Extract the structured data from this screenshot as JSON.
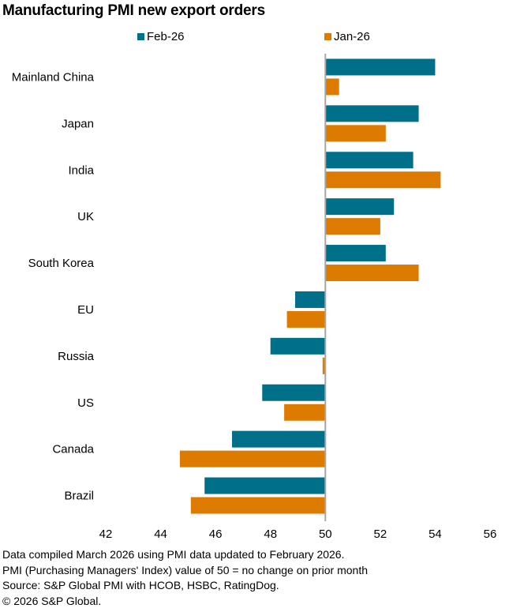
{
  "chart_data": {
    "type": "bar",
    "orientation": "horizontal",
    "title": "Manufacturing PMI new export orders",
    "xlabel": "",
    "ylabel": "",
    "xlim": [
      42,
      56
    ],
    "xticks": [
      42,
      44,
      46,
      48,
      50,
      52,
      54,
      56
    ],
    "baseline": 50,
    "grid": false,
    "legend_position": "top",
    "categories": [
      "Mainland China",
      "Japan",
      "India",
      "UK",
      "South Korea",
      "EU",
      "Russia",
      "US",
      "Canada",
      "Brazil"
    ],
    "series": [
      {
        "name": "Feb-26",
        "color": "#006f8a",
        "values": [
          54.0,
          53.4,
          53.2,
          52.5,
          52.2,
          48.9,
          48.0,
          47.7,
          46.6,
          45.6
        ]
      },
      {
        "name": "Jan-26",
        "color": "#dd7a00",
        "values": [
          50.5,
          52.2,
          54.2,
          52.0,
          53.4,
          48.6,
          49.9,
          48.5,
          44.7,
          45.1
        ]
      }
    ]
  },
  "footer": {
    "lines": [
      "Data compiled March 2026 using PMI data updated to February 2026.",
      "PMI (Purchasing Managers' Index) value of 50 = no change on prior month",
      "Source: S&P Global PMI with HCOB, HSBC, RatingDog.",
      "© 2026 S&P Global."
    ]
  }
}
